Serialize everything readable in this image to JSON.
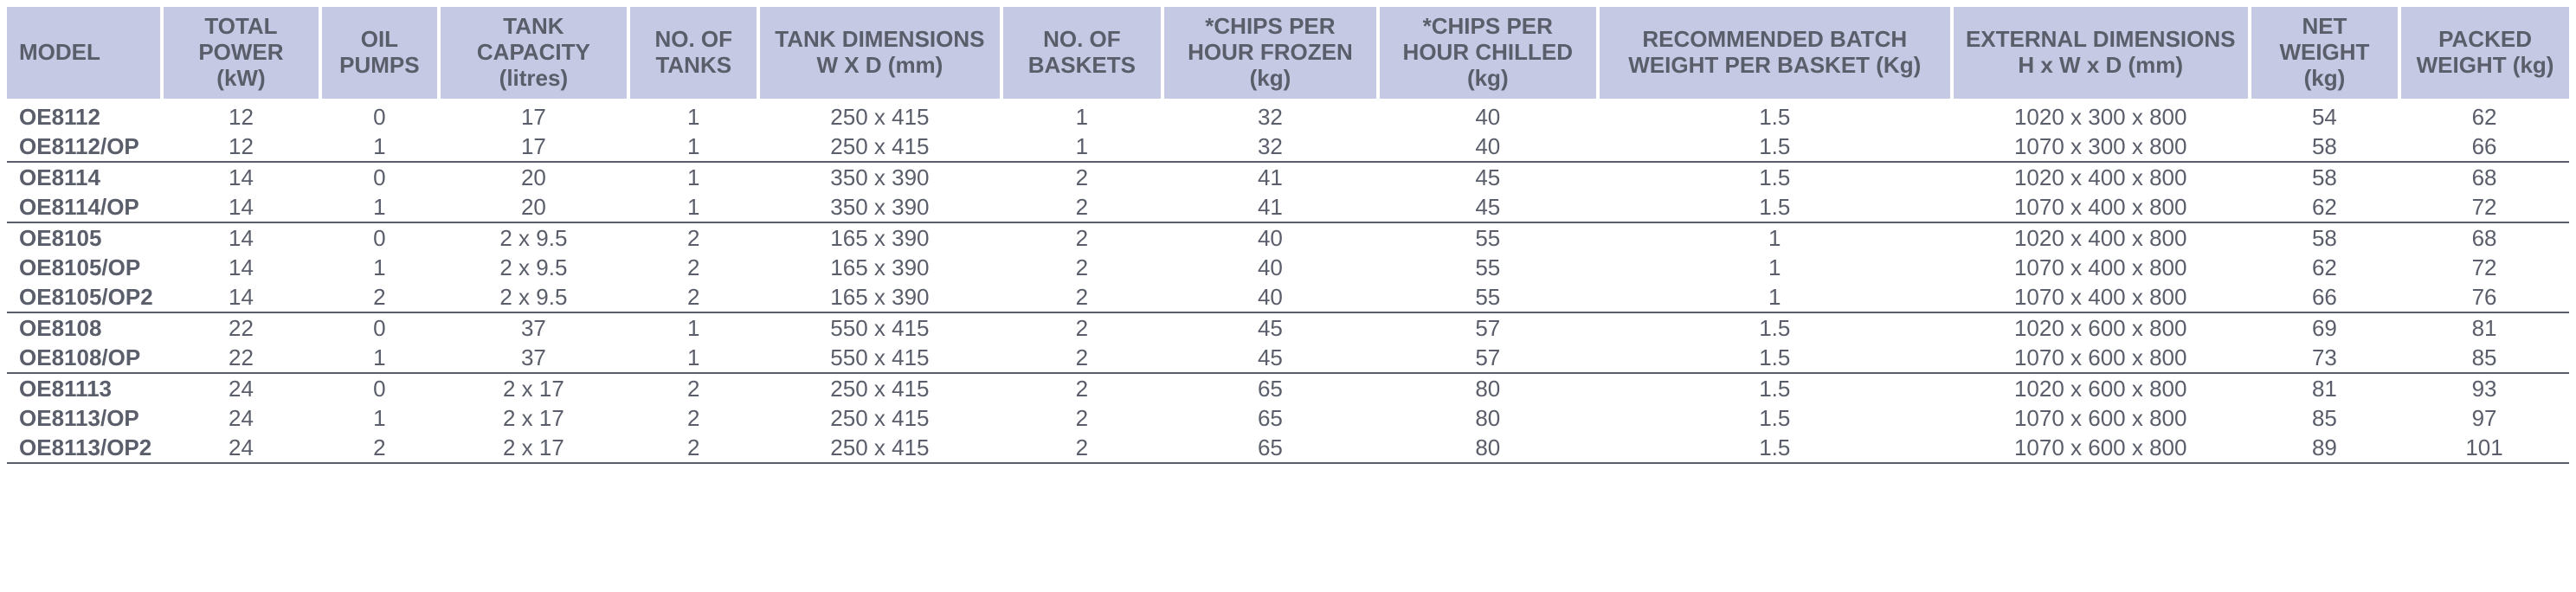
{
  "table": {
    "header_bg": "#c5c9e3",
    "text_color": "#5a5e6a",
    "border_color": "#5a5e6a",
    "header_fontsize": 26,
    "cell_fontsize": 26,
    "columns": [
      "MODEL",
      "TOTAL POWER (kW)",
      "OIL PUMPS",
      "TANK CAPACITY (litres)",
      "NO. OF TANKS",
      "TANK DIMENSIONS W X D (mm)",
      "NO. OF BASKETS",
      "*CHIPS PER HOUR FROZEN (kg)",
      "*CHIPS PER HOUR CHILLED (kg)",
      "RECOMMENDED BATCH WEIGHT PER BASKET (Kg)",
      "EXTERNAL DIMENSIONS H x W x D (mm)",
      "NET WEIGHT (kg)",
      "PACKED WEIGHT (kg)"
    ],
    "groups": [
      {
        "rows": [
          [
            "OE8112",
            "12",
            "0",
            "17",
            "1",
            "250 x 415",
            "1",
            "32",
            "40",
            "1.5",
            "1020 x 300 x 800",
            "54",
            "62"
          ],
          [
            "OE8112/OP",
            "12",
            "1",
            "17",
            "1",
            "250 x 415",
            "1",
            "32",
            "40",
            "1.5",
            "1070 x 300 x 800",
            "58",
            "66"
          ]
        ]
      },
      {
        "rows": [
          [
            "OE8114",
            "14",
            "0",
            "20",
            "1",
            "350 x 390",
            "2",
            "41",
            "45",
            "1.5",
            "1020 x 400 x 800",
            "58",
            "68"
          ],
          [
            "OE8114/OP",
            "14",
            "1",
            "20",
            "1",
            "350 x 390",
            "2",
            "41",
            "45",
            "1.5",
            "1070 x 400 x 800",
            "62",
            "72"
          ]
        ]
      },
      {
        "rows": [
          [
            "OE8105",
            "14",
            "0",
            "2 x 9.5",
            "2",
            "165 x 390",
            "2",
            "40",
            "55",
            "1",
            "1020 x 400 x 800",
            "58",
            "68"
          ],
          [
            "OE8105/OP",
            "14",
            "1",
            "2 x 9.5",
            "2",
            "165 x 390",
            "2",
            "40",
            "55",
            "1",
            "1070 x 400 x 800",
            "62",
            "72"
          ],
          [
            "OE8105/OP2",
            "14",
            "2",
            "2 x 9.5",
            "2",
            "165 x 390",
            "2",
            "40",
            "55",
            "1",
            "1070 x 400 x 800",
            "66",
            "76"
          ]
        ]
      },
      {
        "rows": [
          [
            "OE8108",
            "22",
            "0",
            "37",
            "1",
            "550 x 415",
            "2",
            "45",
            "57",
            "1.5",
            "1020 x 600 x 800",
            "69",
            "81"
          ],
          [
            "OE8108/OP",
            "22",
            "1",
            "37",
            "1",
            "550 x 415",
            "2",
            "45",
            "57",
            "1.5",
            "1070 x 600 x 800",
            "73",
            "85"
          ]
        ]
      },
      {
        "rows": [
          [
            "OE81113",
            "24",
            "0",
            "2 x 17",
            "2",
            "250 x 415",
            "2",
            "65",
            "80",
            "1.5",
            "1020 x 600 x 800",
            "81",
            "93"
          ],
          [
            "OE8113/OP",
            "24",
            "1",
            "2 x 17",
            "2",
            "250 x 415",
            "2",
            "65",
            "80",
            "1.5",
            "1070 x 600 x 800",
            "85",
            "97"
          ],
          [
            "OE8113/OP2",
            "24",
            "2",
            "2 x 17",
            "2",
            "250 x 415",
            "2",
            "65",
            "80",
            "1.5",
            "1070 x 600 x 800",
            "89",
            "101"
          ]
        ]
      }
    ]
  }
}
